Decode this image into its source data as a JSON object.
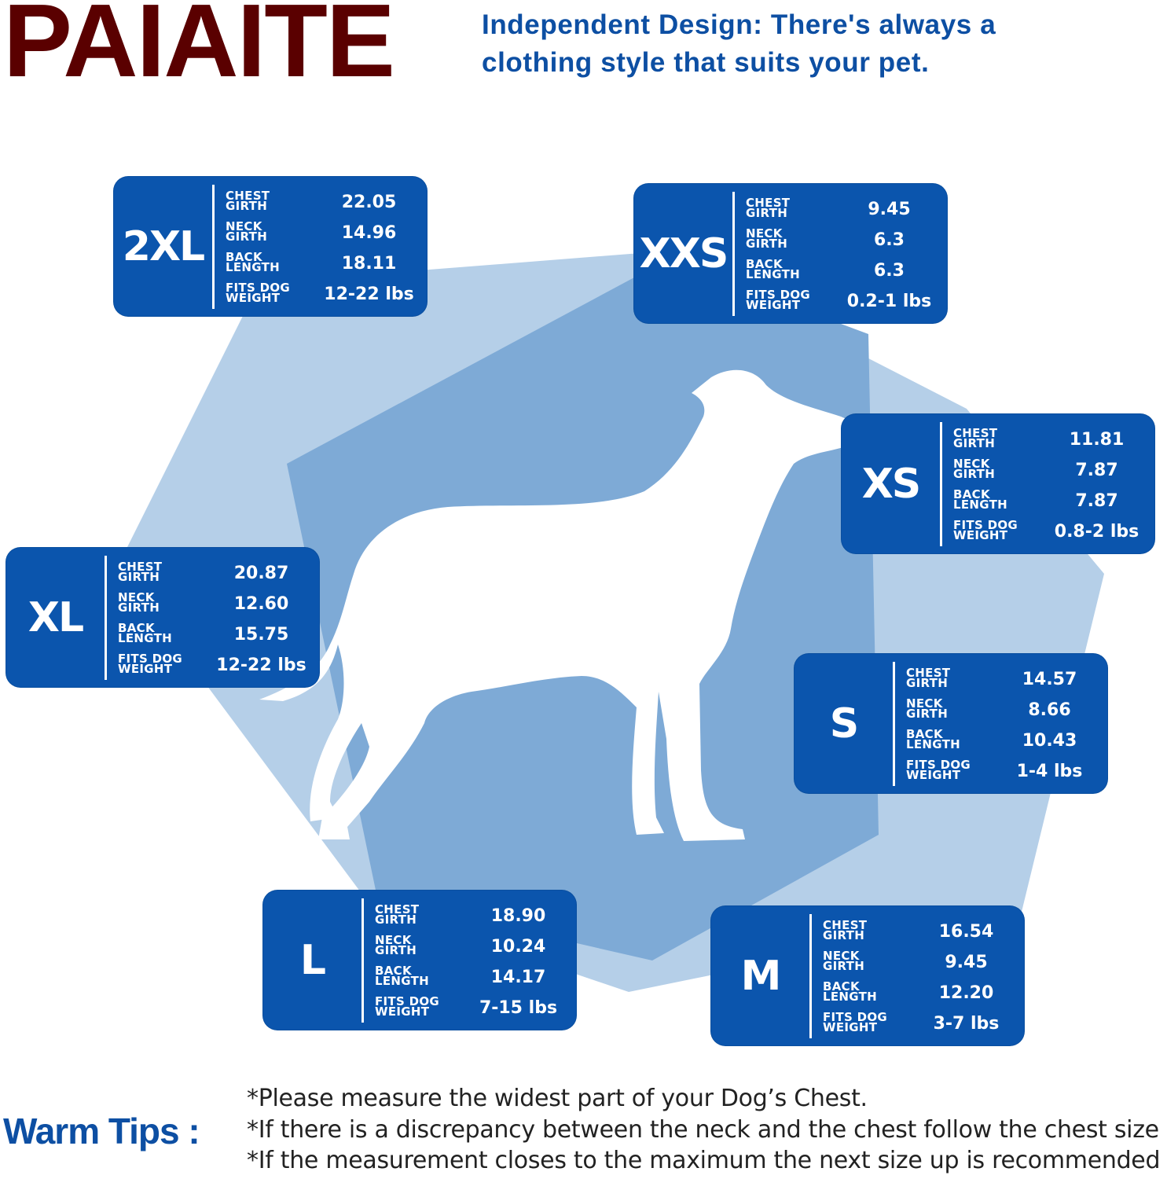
{
  "header": {
    "brand": "PAIAITE",
    "tagline_line1": "Independent Design: There's always a",
    "tagline_line2": "clothing style that suits your pet."
  },
  "colors": {
    "brand": "#5a0000",
    "accent": "#0d4fa3",
    "card": "#0b55ad",
    "hex_light": "#b5cfe8",
    "hex_dark": "#7eaad6"
  },
  "labels": {
    "chest": "CHEST\nGIRTH",
    "neck": "NECK\nGIRTH",
    "back": "BACK\nLENGTH",
    "weight": "FITS DOG\nWEIGHT"
  },
  "sizes": {
    "xxl": {
      "name": "2XL",
      "chest": "22.05",
      "neck": "14.96",
      "back": "18.11",
      "weight": "12-22 lbs"
    },
    "xxs": {
      "name": "XXS",
      "chest": "9.45",
      "neck": "6.3",
      "back": "6.3",
      "weight": "0.2-1 lbs"
    },
    "xs": {
      "name": "XS",
      "chest": "11.81",
      "neck": "7.87",
      "back": "7.87",
      "weight": "0.8-2 lbs"
    },
    "xl": {
      "name": "XL",
      "chest": "20.87",
      "neck": "12.60",
      "back": "15.75",
      "weight": "12-22 lbs"
    },
    "s": {
      "name": "S",
      "chest": "14.57",
      "neck": "8.66",
      "back": "10.43",
      "weight": "1-4 lbs"
    },
    "l": {
      "name": "L",
      "chest": "18.90",
      "neck": "10.24",
      "back": "14.17",
      "weight": "7-15 lbs"
    },
    "m": {
      "name": "M",
      "chest": "16.54",
      "neck": "9.45",
      "back": "12.20",
      "weight": "3-7 lbs"
    }
  },
  "tips": {
    "title": "Warm Tips :",
    "lines": [
      "*Please measure the widest part of your Dog’s Chest.",
      "*If there is a discrepancy between the neck and the chest  follow the chest size",
      "*If the measurement closes to the maximum the next size up is recommended"
    ]
  }
}
